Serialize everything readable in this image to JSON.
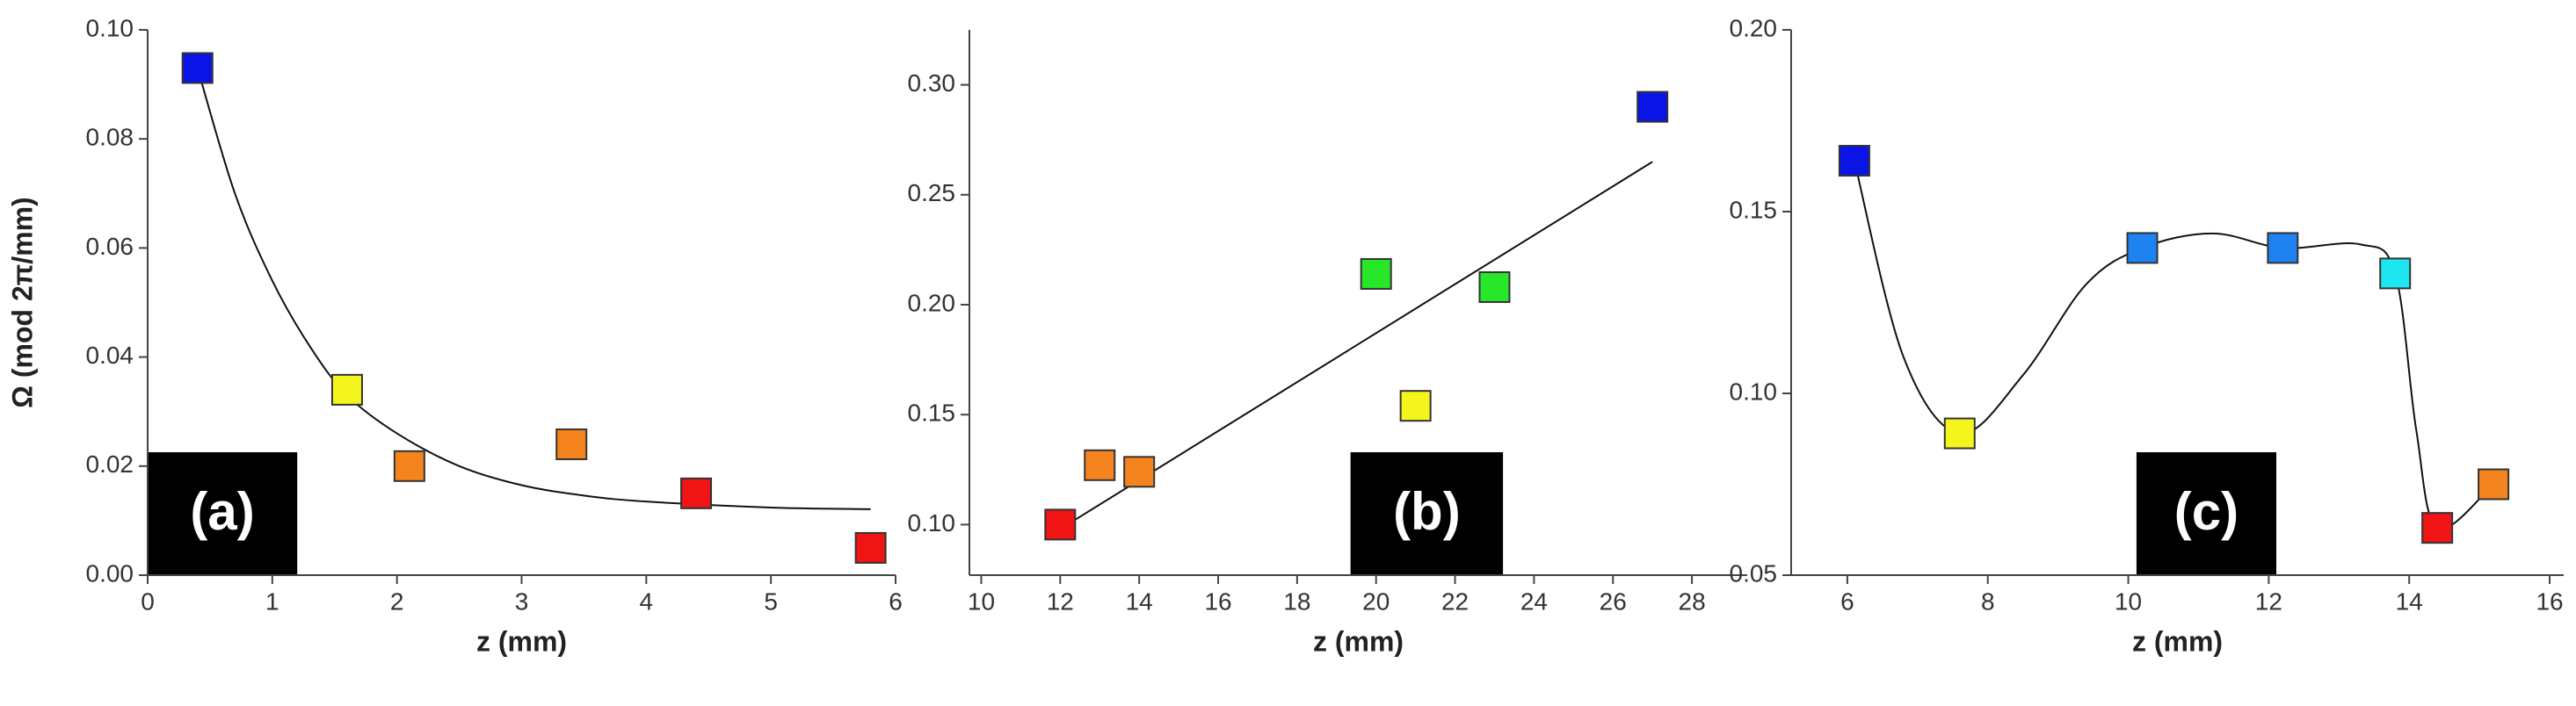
{
  "chart_data": [
    {
      "type": "scatter",
      "annotation": "(a)",
      "y_label": "Ω (mod 2π/mm)",
      "x_label": "z (mm)",
      "x": [
        0.4,
        1.6,
        2.1,
        3.4,
        4.4,
        5.8
      ],
      "values": [
        0.093,
        0.034,
        0.02,
        0.024,
        0.015,
        0.005
      ],
      "colors": [
        "#0a14e6",
        "#f5f51e",
        "#f5841e",
        "#f5841e",
        "#f01414",
        "#f01414"
      ],
      "curve": {
        "x": [
          0.4,
          0.7,
          1.0,
          1.3,
          1.6,
          2.0,
          2.5,
          3.0,
          3.5,
          4.0,
          5.0,
          5.8
        ],
        "values": [
          0.093,
          0.07,
          0.054,
          0.042,
          0.033,
          0.026,
          0.02,
          0.0165,
          0.0146,
          0.0135,
          0.0124,
          0.0121
        ]
      },
      "xlim": [
        0,
        6
      ],
      "xticks": [
        0,
        1,
        2,
        3,
        4,
        5,
        6
      ],
      "ylim": [
        0,
        0.1
      ],
      "yticks": [
        {
          "value": 0,
          "label": "0.00"
        },
        0.02,
        0.04,
        0.06,
        0.08,
        {
          "value": 0.1,
          "label": "0.10"
        }
      ]
    },
    {
      "type": "scatter",
      "annotation": "(b)",
      "x_label": "z (mm)",
      "x": [
        12,
        13,
        14,
        20,
        21,
        23,
        27
      ],
      "values": [
        0.1,
        0.127,
        0.124,
        0.214,
        0.154,
        0.208,
        0.29
      ],
      "colors": [
        "#f01414",
        "#f5841e",
        "#f5841e",
        "#28e628",
        "#f5f51e",
        "#28e628",
        "#0a14e6"
      ],
      "curve": {
        "x": [
          12,
          27
        ],
        "values": [
          0.098,
          0.265
        ]
      },
      "xlim": [
        9.7,
        29.4
      ],
      "xticks": [
        10,
        12,
        14,
        16,
        18,
        20,
        22,
        24,
        26,
        28
      ],
      "ylim": [
        0.077,
        0.325
      ],
      "yticks": [
        {
          "value": 0.1,
          "label": "0.10"
        },
        0.15,
        {
          "value": 0.2,
          "label": "0.20"
        },
        0.25,
        {
          "value": 0.3,
          "label": "0.30"
        }
      ]
    },
    {
      "type": "scatter",
      "annotation": "(c)",
      "x_label": "z (mm)",
      "x": [
        6.1,
        7.6,
        10.2,
        12.2,
        13.8,
        14.4,
        15.2
      ],
      "values": [
        0.164,
        0.089,
        0.14,
        0.14,
        0.133,
        0.063,
        0.075
      ],
      "colors": [
        "#0a14e6",
        "#f5f51e",
        "#1e82f0",
        "#1e82f0",
        "#1ee6f0",
        "#f01414",
        "#f5841e"
      ],
      "curve": {
        "x": [
          6.1,
          6.8,
          7.6,
          8.5,
          9.4,
          10.2,
          11.2,
          12.2,
          13.3,
          13.8,
          14.1,
          14.4,
          15.2
        ],
        "values": [
          0.164,
          0.11,
          0.089,
          0.105,
          0.13,
          0.14,
          0.144,
          0.14,
          0.141,
          0.133,
          0.09,
          0.063,
          0.075
        ]
      },
      "xlim": [
        5.2,
        16.2
      ],
      "xticks": [
        6,
        8,
        10,
        12,
        14,
        16
      ],
      "ylim": [
        0.05,
        0.2
      ],
      "yticks": [
        0.05,
        {
          "value": 0.1,
          "label": "0.10"
        },
        0.15,
        {
          "value": 0.2,
          "label": "0.20"
        }
      ]
    }
  ]
}
